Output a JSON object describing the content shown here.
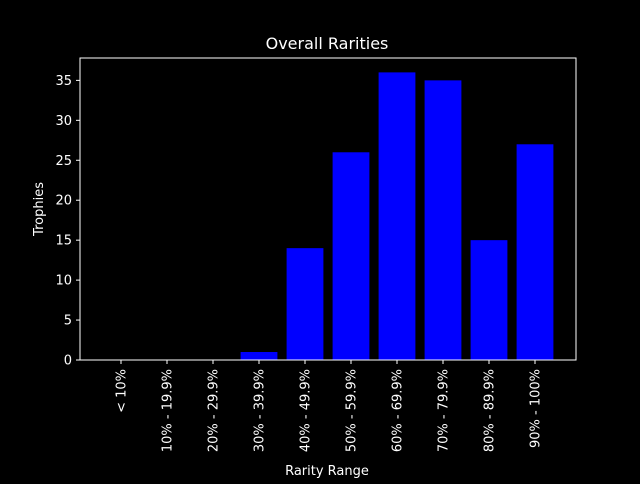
{
  "chart_data": {
    "type": "bar",
    "title": "Overall Rarities",
    "xlabel": "Rarity Range",
    "ylabel": "Trophies",
    "categories": [
      "< 10%",
      "10% - 19.9%",
      "20% - 29.9%",
      "30% - 39.9%",
      "40% - 49.9%",
      "50% - 59.9%",
      "60% - 69.9%",
      "70% - 79.9%",
      "80% - 89.9%",
      "90% - 100%"
    ],
    "values": [
      0,
      0,
      0,
      1,
      14,
      26,
      36,
      35,
      15,
      27
    ],
    "yticks": [
      "0",
      "5",
      "10",
      "15",
      "20",
      "25",
      "30",
      "35"
    ],
    "ylim": [
      0,
      37.8
    ],
    "grid": false,
    "colors": {
      "background": "#000000",
      "bar": "#0000ff",
      "text": "#ffffff",
      "axes": "#ffffff"
    }
  }
}
